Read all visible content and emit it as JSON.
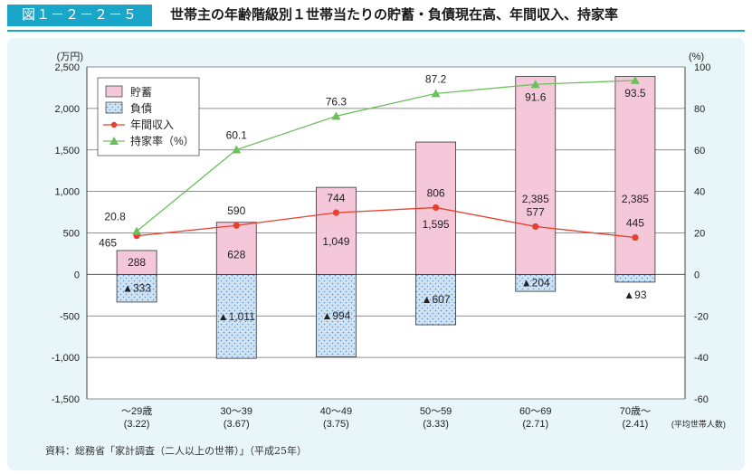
{
  "header": {
    "figure_number": "図１－２－２－５",
    "title": "世帯主の年齢階級別１世帯当たりの貯蓄・負債現在高、年間収入、持家率"
  },
  "source": "資料：総務省「家計調査（二人以上の世帯）」（平成25年）",
  "colors": {
    "savings_fill": "#f4c7d9",
    "debt_fill": "#cfe3f4",
    "income_line": "#e8402f",
    "home_line": "#6cc05c",
    "accent": "#1aa6c9"
  },
  "chart_data": {
    "type": "bar",
    "categories": [
      "～29歳",
      "30～39",
      "40～49",
      "50～59",
      "60～69",
      "70歳～"
    ],
    "household_size": [
      "(3.22)",
      "(3.67)",
      "(3.75)",
      "(3.33)",
      "(2.71)",
      "(2.41)"
    ],
    "household_size_note": "(平均世帯人数)",
    "left_unit": "(万円)",
    "right_unit": "(%)",
    "ylim_left": [
      -1500,
      2500
    ],
    "ylim_right": [
      -60,
      100
    ],
    "yticks_left": [
      "2,500",
      "2,000",
      "1,500",
      "1,000",
      "500",
      "0",
      "-500",
      "-1,000",
      "-1,500"
    ],
    "yticks_right": [
      "100",
      "80",
      "60",
      "40",
      "20",
      "0",
      "-20",
      "-40",
      "-60"
    ],
    "grid": true,
    "legend_position": "top-left",
    "series": [
      {
        "name": "貯蓄",
        "type": "bar",
        "axis": "left",
        "values": [
          288,
          628,
          1049,
          1595,
          2385,
          2385
        ],
        "labels": [
          "288",
          "628",
          "1,049",
          "1,595",
          "2,385",
          "2,385"
        ]
      },
      {
        "name": "負債",
        "type": "bar",
        "axis": "left",
        "values": [
          -333,
          -1011,
          -994,
          -607,
          -204,
          -93
        ],
        "labels": [
          "▲333",
          "▲1,011",
          "▲994",
          "▲607",
          "▲204",
          "▲93"
        ]
      },
      {
        "name": "年間収入",
        "type": "line",
        "axis": "left",
        "values": [
          465,
          590,
          744,
          806,
          577,
          445
        ],
        "labels": [
          "465",
          "590",
          "744",
          "806",
          "577",
          "445"
        ]
      },
      {
        "name": "持家率（%）",
        "type": "line",
        "axis": "right",
        "values": [
          20.8,
          60.1,
          76.3,
          87.2,
          91.6,
          93.5
        ],
        "labels": [
          "20.8",
          "60.1",
          "76.3",
          "87.2",
          "91.6",
          "93.5"
        ]
      }
    ]
  }
}
